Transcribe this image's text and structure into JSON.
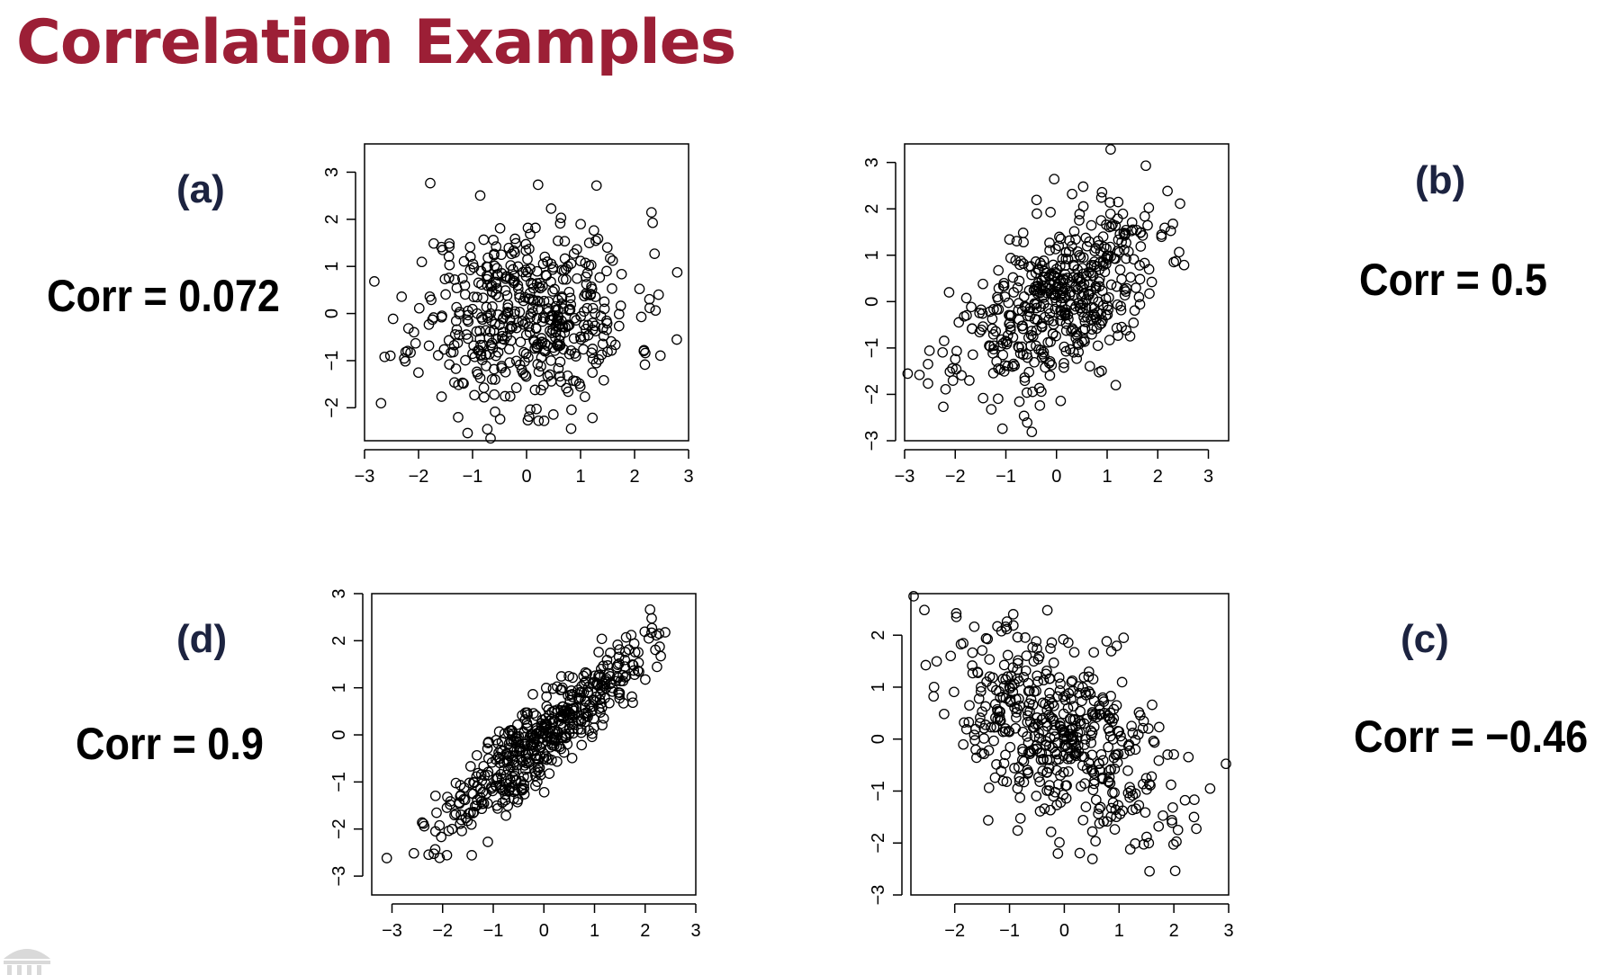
{
  "title": "Correlation Examples",
  "colors": {
    "title": "#9c1f36",
    "label": "#1c2340",
    "points": "#000000"
  },
  "chart_data": [
    {
      "type": "scatter",
      "panel": "(a)",
      "annotation": "Corr = 0.072",
      "correlation": 0.072,
      "n_points": 500,
      "xlim": [
        -3,
        3
      ],
      "ylim": [
        -2.7,
        3.6
      ],
      "xticks": [
        "−3",
        "−2",
        "−1",
        "0",
        "1",
        "2",
        "3"
      ],
      "yticks": [
        "−2",
        "−1",
        "0",
        "1",
        "2",
        "3"
      ],
      "xtick_values": [
        -3,
        -2,
        -1,
        0,
        1,
        2,
        3
      ],
      "ytick_values": [
        -2,
        -1,
        0,
        1,
        2,
        3
      ]
    },
    {
      "type": "scatter",
      "panel": "(b)",
      "annotation": "Corr = 0.5",
      "correlation": 0.5,
      "n_points": 500,
      "xlim": [
        -3,
        3.4
      ],
      "ylim": [
        -3,
        3.4
      ],
      "xticks": [
        "−3",
        "−2",
        "−1",
        "0",
        "1",
        "2",
        "3"
      ],
      "yticks": [
        "−3",
        "−2",
        "−1",
        "0",
        "1",
        "2",
        "3"
      ],
      "xtick_values": [
        -3,
        -2,
        -1,
        0,
        1,
        2,
        3
      ],
      "ytick_values": [
        -3,
        -2,
        -1,
        0,
        1,
        2,
        3
      ]
    },
    {
      "type": "scatter",
      "panel": "(d)",
      "annotation": "Corr = 0.9",
      "correlation": 0.9,
      "n_points": 500,
      "xlim": [
        -3.4,
        3
      ],
      "ylim": [
        -3.4,
        3
      ],
      "xticks": [
        "−3",
        "−2",
        "−1",
        "0",
        "1",
        "2",
        "3"
      ],
      "yticks": [
        "−3",
        "−2",
        "−1",
        "0",
        "1",
        "2",
        "3"
      ],
      "xtick_values": [
        -3,
        -2,
        -1,
        0,
        1,
        2,
        3
      ],
      "ytick_values": [
        -3,
        -2,
        -1,
        0,
        1,
        2,
        3
      ]
    },
    {
      "type": "scatter",
      "panel": "(c)",
      "annotation": "Corr = −0.46",
      "correlation": -0.46,
      "n_points": 500,
      "xlim": [
        -2.8,
        3
      ],
      "ylim": [
        -3,
        2.8
      ],
      "xticks": [
        "−2",
        "−1",
        "0",
        "1",
        "2",
        "3"
      ],
      "yticks": [
        "−3",
        "−2",
        "−1",
        "0",
        "1",
        "2"
      ],
      "xtick_values": [
        -2,
        -1,
        0,
        1,
        2,
        3
      ],
      "ytick_values": [
        -3,
        -2,
        -1,
        0,
        1,
        2
      ]
    }
  ]
}
